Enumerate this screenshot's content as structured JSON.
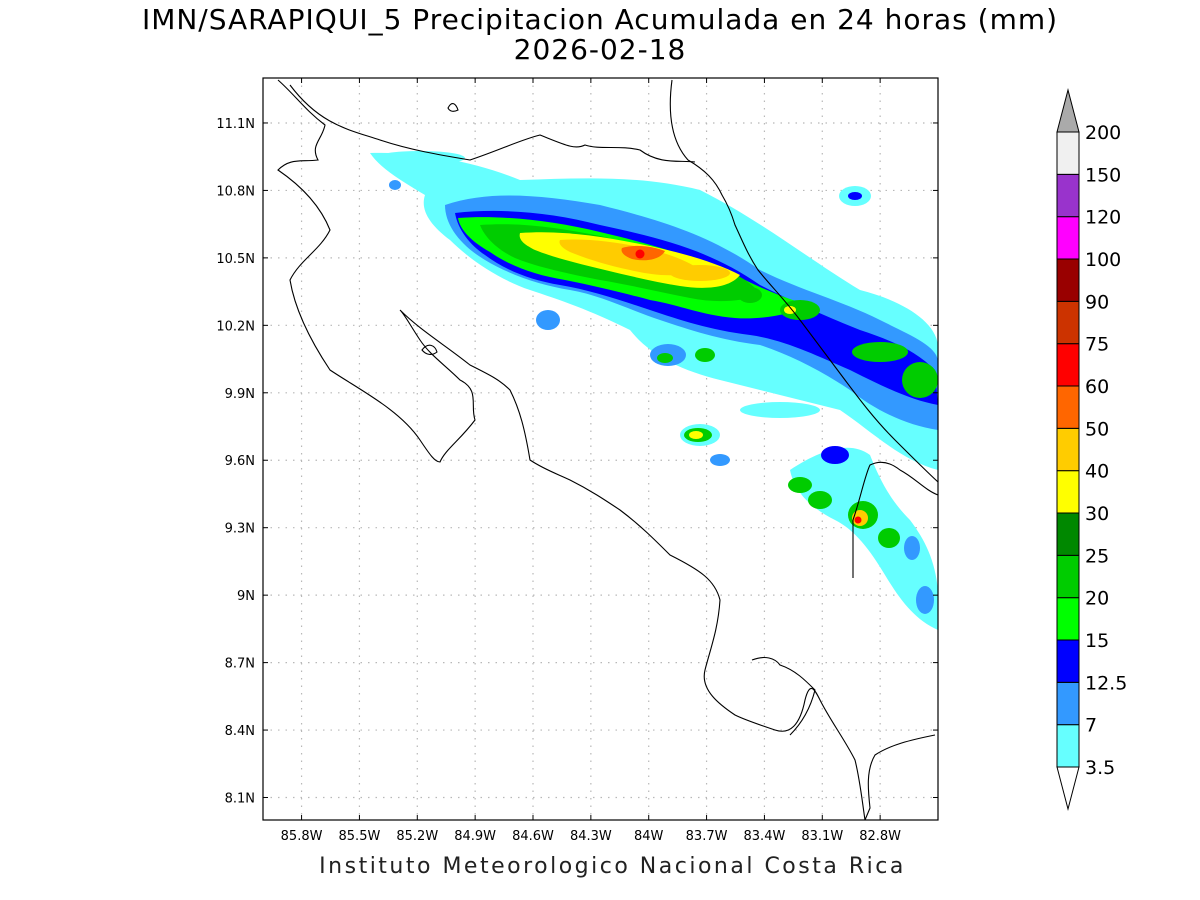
{
  "title": {
    "line1": "IMN/SARAPIQUI_5 Precipitacion Acumulada en 24 horas (mm)",
    "line2": "2026-02-18"
  },
  "footer": "Instituto Meteorologico Nacional Costa Rica",
  "map": {
    "lon_range": [
      -86.0,
      -82.5
    ],
    "lat_range": [
      8.0,
      11.3
    ],
    "x_ticks": [
      "85.8W",
      "85.5W",
      "85.2W",
      "84.9W",
      "84.6W",
      "84.3W",
      "84W",
      "83.7W",
      "83.4W",
      "83.1W",
      "82.8W"
    ],
    "y_ticks": [
      "11.1N",
      "10.8N",
      "10.5N",
      "10.2N",
      "9.9N",
      "9.6N",
      "9.3N",
      "9N",
      "8.7N",
      "8.4N",
      "8.1N"
    ],
    "grid": "dotted",
    "variable": "accumulated precipitation 24h (mm)"
  },
  "colorbar": {
    "levels": [
      "3.5",
      "7",
      "12.5",
      "15",
      "20",
      "25",
      "30",
      "40",
      "50",
      "60",
      "75",
      "90",
      "100",
      "120",
      "150",
      "200"
    ],
    "colors": [
      "#66ffff",
      "#3399ff",
      "#0000ff",
      "#00ff00",
      "#00cc00",
      "#008800",
      "#ffff00",
      "#ffcc00",
      "#ff6600",
      "#ff0000",
      "#cc3300",
      "#990000",
      "#ff00ff",
      "#9933cc",
      "#f0f0f0"
    ],
    "below_color": "#ffffff",
    "above_color": "#aaaaaa",
    "orientation": "vertical",
    "placement": "right"
  },
  "colors": {
    "frame": "#000000",
    "grid": "#b8b8b8",
    "coast": "#000000"
  }
}
